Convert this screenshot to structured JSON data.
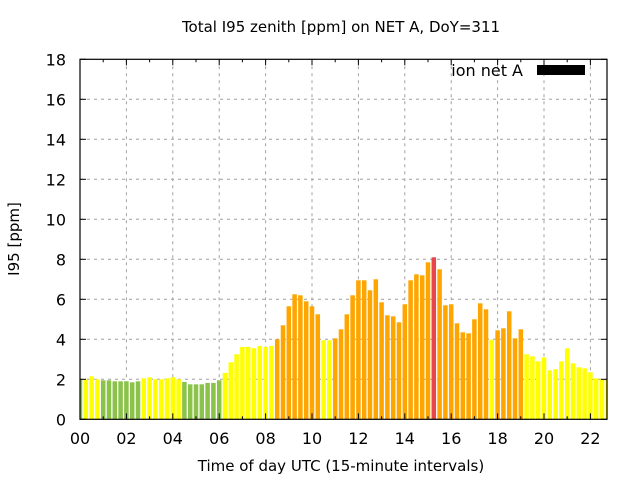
{
  "chart_data": {
    "type": "bar",
    "title": "Total I95 zenith [ppm] on NET A, DoY=311",
    "xlabel": "Time of day UTC (15-minute intervals)",
    "ylabel": "I95 [ppm]",
    "xlim": [
      0,
      22.75
    ],
    "ylim": [
      0,
      18
    ],
    "grid": true,
    "legend": {
      "position": "top-right",
      "entries": [
        {
          "label": "ion net A",
          "color": "#000000"
        }
      ]
    },
    "x_tick_values": [
      0,
      2,
      4,
      6,
      8,
      10,
      12,
      14,
      16,
      18,
      20,
      22
    ],
    "x_tick_labels": [
      "00",
      "02",
      "04",
      "06",
      "08",
      "10",
      "12",
      "14",
      "16",
      "18",
      "20",
      "22"
    ],
    "y_tick_values": [
      0,
      2,
      4,
      6,
      8,
      10,
      12,
      14,
      16,
      18
    ],
    "y_tick_labels": [
      "0",
      "2",
      "4",
      "6",
      "8",
      "10",
      "12",
      "14",
      "16",
      "18"
    ],
    "bar_interval_hours": 0.25,
    "colors": {
      "green": "#8bc34a",
      "yellow": "#ffff00",
      "orange": "#ffa500",
      "red": "#e8464a"
    },
    "series": [
      {
        "name": "ion net A",
        "x": [
          0,
          0.25,
          0.5,
          0.75,
          1,
          1.25,
          1.5,
          1.75,
          2,
          2.25,
          2.5,
          2.75,
          3,
          3.25,
          3.5,
          3.75,
          4,
          4.25,
          4.5,
          4.75,
          5,
          5.25,
          5.5,
          5.75,
          6,
          6.25,
          6.5,
          6.75,
          7,
          7.25,
          7.5,
          7.75,
          8,
          8.25,
          8.5,
          8.75,
          9,
          9.25,
          9.5,
          9.75,
          10,
          10.25,
          10.5,
          10.75,
          11,
          11.25,
          11.5,
          11.75,
          12,
          12.25,
          12.5,
          12.75,
          13,
          13.25,
          13.5,
          13.75,
          14,
          14.25,
          14.5,
          14.75,
          15,
          15.25,
          15.5,
          15.75,
          16,
          16.25,
          16.5,
          16.75,
          17,
          17.25,
          17.5,
          17.75,
          18,
          18.25,
          18.5,
          18.75,
          19,
          19.25,
          19.5,
          19.75,
          20,
          20.25,
          20.5,
          20.75,
          21,
          21.25,
          21.5,
          21.75,
          22,
          22.25,
          22.5,
          22.75
        ],
        "values": [
          2.0,
          2.0,
          2.15,
          2.0,
          1.95,
          1.95,
          1.9,
          1.9,
          1.9,
          1.85,
          1.9,
          2.05,
          2.1,
          2.0,
          2.0,
          2.05,
          2.1,
          2.0,
          1.87,
          1.75,
          1.75,
          1.75,
          1.82,
          1.82,
          1.95,
          2.32,
          2.85,
          3.25,
          3.62,
          3.62,
          3.55,
          3.67,
          3.62,
          3.67,
          4.0,
          4.7,
          5.65,
          6.25,
          6.2,
          5.9,
          5.65,
          5.25,
          3.95,
          3.95,
          4.05,
          4.5,
          5.25,
          6.2,
          6.95,
          6.95,
          6.45,
          7.0,
          5.85,
          5.2,
          5.15,
          4.85,
          5.75,
          6.95,
          7.25,
          7.2,
          7.85,
          8.1,
          7.5,
          5.7,
          5.75,
          4.8,
          4.35,
          4.3,
          5.0,
          5.8,
          5.5,
          3.98,
          4.45,
          4.55,
          5.4,
          4.05,
          4.5,
          3.25,
          3.15,
          2.9,
          3.1,
          2.45,
          2.5,
          2.9,
          3.55,
          2.8,
          2.6,
          2.55,
          2.35,
          2.05,
          2.0,
          2.0
        ],
        "bar_colors": [
          "green",
          "yellow",
          "yellow",
          "yellow",
          "green",
          "green",
          "green",
          "green",
          "green",
          "green",
          "green",
          "yellow",
          "yellow",
          "yellow",
          "yellow",
          "yellow",
          "yellow",
          "yellow",
          "green",
          "green",
          "green",
          "green",
          "green",
          "green",
          "green",
          "yellow",
          "yellow",
          "yellow",
          "yellow",
          "yellow",
          "yellow",
          "yellow",
          "yellow",
          "yellow",
          "orange",
          "orange",
          "orange",
          "orange",
          "orange",
          "orange",
          "orange",
          "orange",
          "yellow",
          "yellow",
          "orange",
          "orange",
          "orange",
          "orange",
          "orange",
          "orange",
          "orange",
          "orange",
          "orange",
          "orange",
          "orange",
          "orange",
          "orange",
          "orange",
          "orange",
          "orange",
          "orange",
          "red",
          "orange",
          "orange",
          "orange",
          "orange",
          "orange",
          "orange",
          "orange",
          "orange",
          "orange",
          "yellow",
          "orange",
          "orange",
          "orange",
          "orange",
          "orange",
          "yellow",
          "yellow",
          "yellow",
          "yellow",
          "yellow",
          "yellow",
          "yellow",
          "yellow",
          "yellow",
          "yellow",
          "yellow",
          "yellow",
          "yellow",
          "yellow",
          "yellow"
        ]
      }
    ]
  }
}
